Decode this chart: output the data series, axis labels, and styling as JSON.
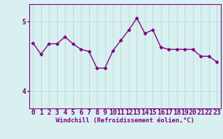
{
  "x": [
    0,
    1,
    2,
    3,
    4,
    5,
    6,
    7,
    8,
    9,
    10,
    11,
    12,
    13,
    14,
    15,
    16,
    17,
    18,
    19,
    20,
    21,
    22,
    23
  ],
  "y": [
    4.69,
    4.53,
    4.68,
    4.68,
    4.78,
    4.68,
    4.6,
    4.57,
    4.33,
    4.33,
    4.58,
    4.73,
    4.88,
    5.05,
    4.83,
    4.88,
    4.63,
    4.6,
    4.6,
    4.6,
    4.6,
    4.5,
    4.5,
    4.42
  ],
  "line_color": "#800080",
  "marker": "D",
  "marker_size": 2.5,
  "bg_color": "#d8f0f0",
  "grid_color": "#b8d8d8",
  "xlabel": "Windchill (Refroidissement éolien,°C)",
  "xlabel_color": "#800080",
  "ytick_values": [
    4,
    5
  ],
  "ytick_labels": [
    "4",
    "5"
  ],
  "ylim": [
    3.75,
    5.25
  ],
  "xlim": [
    -0.5,
    23.5
  ],
  "tick_fontsize": 7,
  "xlabel_fontsize": 6.5,
  "linewidth": 1.0
}
